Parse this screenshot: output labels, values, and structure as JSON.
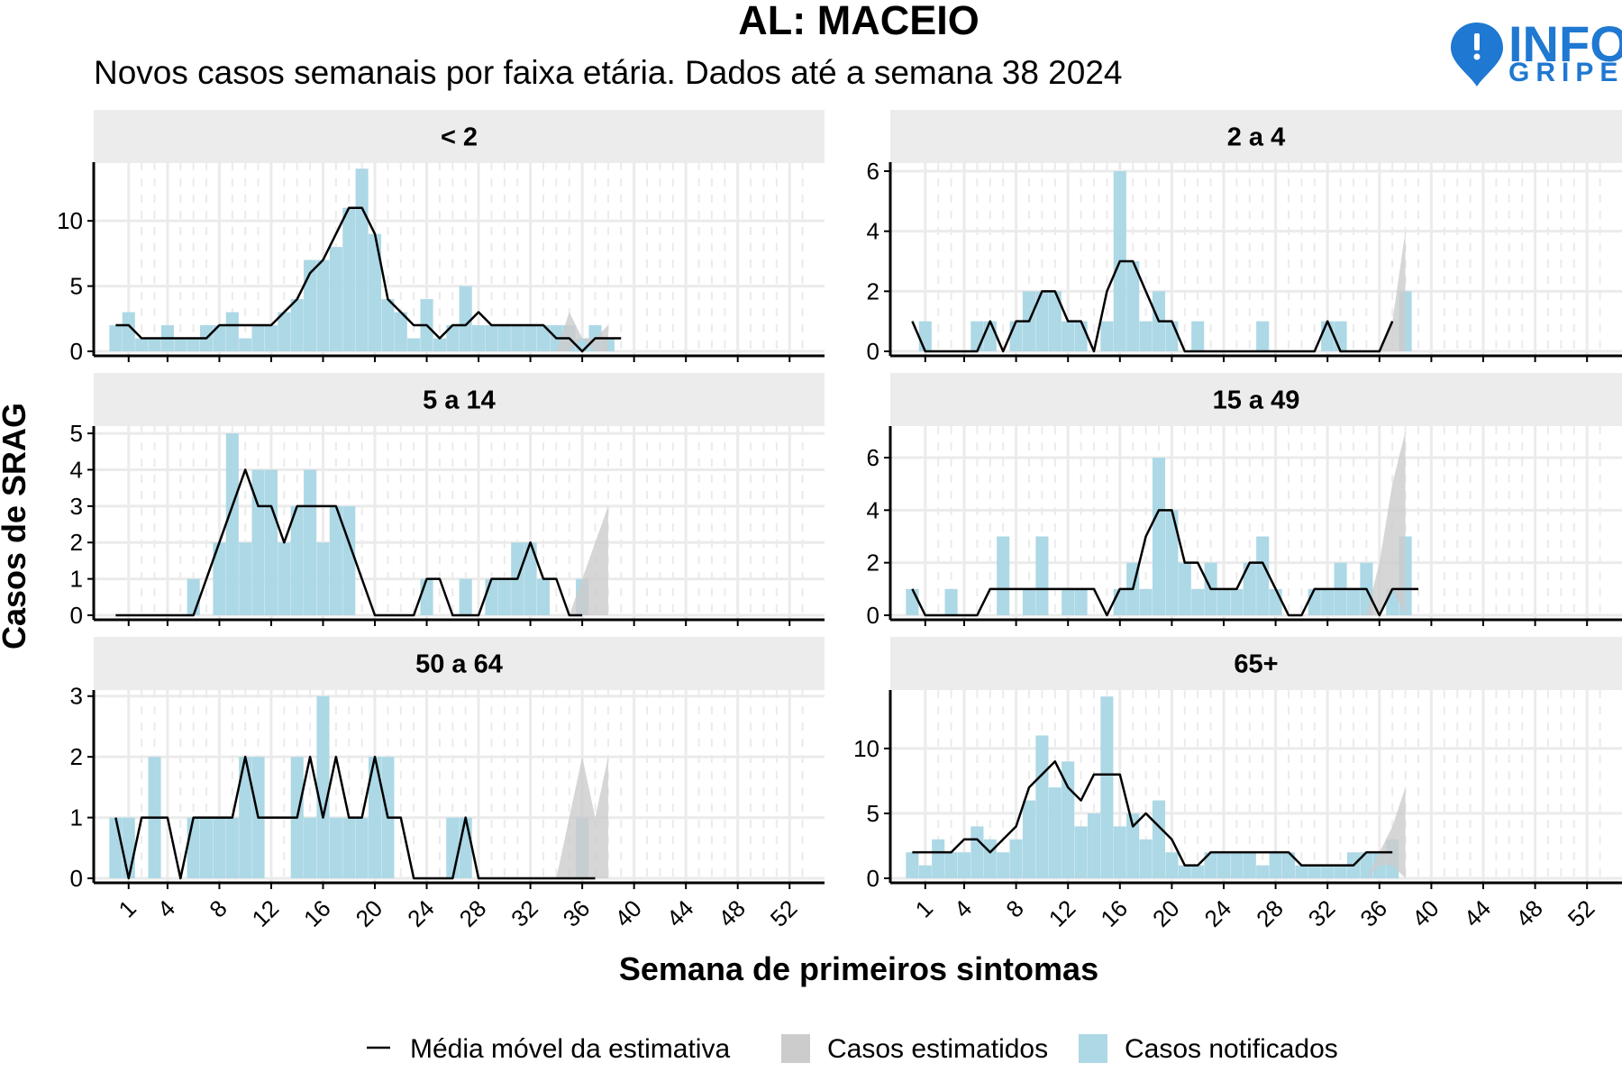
{
  "title": "AL: MACEIO",
  "subtitle": "Novos casos semanais por faixa etária. Dados até a semana 38 2024",
  "logo": {
    "line1": "INFO",
    "line2": "GRIPE",
    "color": "#1f78d1"
  },
  "chart_data": {
    "type": "bar",
    "y_axis_label": "Casos de SRAG",
    "x_axis_label": "Semana de primeiros sintomas",
    "x_ticks": [
      1,
      4,
      8,
      12,
      16,
      20,
      24,
      28,
      32,
      36,
      40,
      44,
      48,
      52
    ],
    "xlim": [
      -1,
      54
    ],
    "colors": {
      "notified": "#add8e6",
      "estimated": "#cccccc",
      "moving_average": "#000000",
      "strip": "#ececec",
      "grid": "#ebebeb"
    },
    "legend": {
      "placement": "bottom",
      "items": [
        {
          "label": "Média móvel da estimativa",
          "kind": "line"
        },
        {
          "label": "Casos estimatidos",
          "kind": "estimated"
        },
        {
          "label": "Casos notificados",
          "kind": "notified"
        }
      ]
    },
    "panels": [
      {
        "name": "< 2",
        "ylim": [
          0,
          14.5
        ],
        "y_ticks": [
          0,
          5,
          10
        ],
        "notified": [
          2,
          3,
          1,
          1,
          2,
          1,
          1,
          2,
          2,
          3,
          1,
          2,
          2,
          3,
          4,
          7,
          7,
          8,
          11,
          14,
          9,
          4,
          3,
          1,
          4,
          1,
          2,
          5,
          2,
          2,
          2,
          2,
          2,
          2,
          2,
          2,
          1,
          2,
          1,
          0
        ],
        "moving_average": [
          2,
          2,
          1,
          1,
          1,
          1,
          1,
          1,
          2,
          2,
          2,
          2,
          2,
          3,
          4,
          6,
          7,
          9,
          11,
          11,
          9,
          4,
          3,
          2,
          2,
          1,
          2,
          2,
          3,
          2,
          2,
          2,
          2,
          2,
          1,
          1,
          0,
          1,
          1,
          1
        ],
        "estimate_band": {
          "weeks": [
            34,
            35,
            36,
            37,
            38
          ],
          "lower": [
            0,
            0,
            1,
            0,
            0
          ],
          "upper": [
            0,
            3,
            1,
            1,
            2
          ]
        }
      },
      {
        "name": "2 a 4",
        "ylim": [
          0,
          6.3
        ],
        "y_ticks": [
          0,
          2,
          4,
          6
        ],
        "notified": [
          0,
          1,
          0,
          0,
          0,
          1,
          1,
          0,
          1,
          2,
          2,
          2,
          1,
          1,
          0,
          1,
          6,
          3,
          1,
          2,
          1,
          0,
          1,
          0,
          0,
          0,
          0,
          1,
          0,
          0,
          0,
          0,
          1,
          1,
          0,
          0,
          0,
          0,
          2
        ],
        "moving_average": [
          1,
          0,
          0,
          0,
          0,
          0,
          1,
          0,
          1,
          1,
          2,
          2,
          1,
          1,
          0,
          2,
          3,
          3,
          2,
          1,
          1,
          0,
          0,
          0,
          0,
          0,
          0,
          0,
          0,
          0,
          0,
          0,
          1,
          0,
          0,
          0,
          0,
          1
        ],
        "estimate_band": {
          "weeks": [
            36,
            37,
            38
          ],
          "lower": [
            0,
            0,
            0
          ],
          "upper": [
            0,
            1,
            4
          ]
        }
      },
      {
        "name": "5 a 14",
        "ylim": [
          0,
          5.2
        ],
        "y_ticks": [
          0,
          1,
          2,
          3,
          4,
          5
        ],
        "notified": [
          0,
          0,
          0,
          0,
          0,
          0,
          1,
          0,
          2,
          5,
          2,
          4,
          4,
          2,
          3,
          4,
          2,
          3,
          3,
          0,
          0,
          0,
          0,
          0,
          1,
          0,
          0,
          1,
          0,
          1,
          1,
          2,
          2,
          1,
          0,
          0,
          1,
          0
        ],
        "moving_average": [
          0,
          0,
          0,
          0,
          0,
          0,
          0,
          1,
          2,
          3,
          4,
          3,
          3,
          2,
          3,
          3,
          3,
          3,
          2,
          1,
          0,
          0,
          0,
          0,
          1,
          1,
          0,
          0,
          0,
          1,
          1,
          1,
          2,
          1,
          1,
          0,
          0
        ],
        "estimate_band": {
          "weeks": [
            35,
            36,
            37,
            38
          ],
          "lower": [
            0,
            0,
            0,
            0
          ],
          "upper": [
            0,
            1,
            2,
            3
          ]
        }
      },
      {
        "name": "15 a 49",
        "ylim": [
          0,
          7.2
        ],
        "y_ticks": [
          0,
          2,
          4,
          6
        ],
        "notified": [
          1,
          0,
          0,
          1,
          0,
          0,
          0,
          3,
          0,
          1,
          3,
          0,
          1,
          1,
          0,
          0,
          1,
          2,
          1,
          6,
          4,
          2,
          1,
          2,
          1,
          1,
          2,
          3,
          1,
          0,
          0,
          1,
          1,
          2,
          1,
          2,
          0,
          1,
          3,
          0
        ],
        "moving_average": [
          1,
          0,
          0,
          0,
          0,
          0,
          1,
          1,
          1,
          1,
          1,
          1,
          1,
          1,
          1,
          0,
          1,
          1,
          3,
          4,
          4,
          2,
          2,
          1,
          1,
          1,
          2,
          2,
          1,
          0,
          0,
          1,
          1,
          1,
          1,
          1,
          0,
          1,
          1,
          1
        ],
        "estimate_band": {
          "weeks": [
            35,
            36,
            37,
            38
          ],
          "lower": [
            0,
            0,
            1,
            0
          ],
          "upper": [
            0,
            2,
            5,
            7
          ]
        }
      },
      {
        "name": "50 a 64",
        "ylim": [
          0,
          3.1
        ],
        "y_ticks": [
          0,
          1,
          2,
          3
        ],
        "notified": [
          1,
          1,
          0,
          2,
          0,
          0,
          1,
          1,
          1,
          1,
          2,
          2,
          0,
          0,
          2,
          1,
          3,
          1,
          1,
          1,
          2,
          2,
          0,
          0,
          0,
          0,
          1,
          1,
          0,
          0,
          0,
          0,
          0,
          0,
          0,
          0,
          1,
          0
        ],
        "moving_average": [
          1,
          0,
          1,
          1,
          1,
          0,
          1,
          1,
          1,
          1,
          2,
          1,
          1,
          1,
          1,
          2,
          1,
          2,
          1,
          1,
          2,
          1,
          1,
          0,
          0,
          0,
          0,
          1,
          0,
          0,
          0,
          0,
          0,
          0,
          0,
          0,
          0,
          0
        ],
        "estimate_band": {
          "weeks": [
            34,
            35,
            36,
            37,
            38
          ],
          "lower": [
            0,
            0,
            0,
            0,
            0
          ],
          "upper": [
            0,
            1,
            2,
            1,
            2
          ]
        }
      },
      {
        "name": "65+",
        "ylim": [
          0,
          14.5
        ],
        "y_ticks": [
          0,
          5,
          10
        ],
        "notified": [
          2,
          1,
          3,
          2,
          2,
          4,
          3,
          2,
          3,
          6,
          11,
          7,
          9,
          4,
          5,
          14,
          4,
          5,
          3,
          6,
          2,
          1,
          1,
          2,
          2,
          2,
          2,
          1,
          2,
          2,
          1,
          1,
          1,
          1,
          2,
          2,
          2,
          3,
          0
        ],
        "moving_average": [
          2,
          2,
          2,
          2,
          3,
          3,
          2,
          3,
          4,
          7,
          8,
          9,
          7,
          6,
          8,
          8,
          8,
          4,
          5,
          4,
          3,
          1,
          1,
          2,
          2,
          2,
          2,
          2,
          2,
          2,
          1,
          1,
          1,
          1,
          1,
          2,
          2,
          2
        ],
        "estimate_band": {
          "weeks": [
            35,
            36,
            37,
            38
          ],
          "lower": [
            0,
            1,
            1,
            0
          ],
          "upper": [
            0,
            2,
            4,
            7
          ]
        }
      }
    ]
  }
}
